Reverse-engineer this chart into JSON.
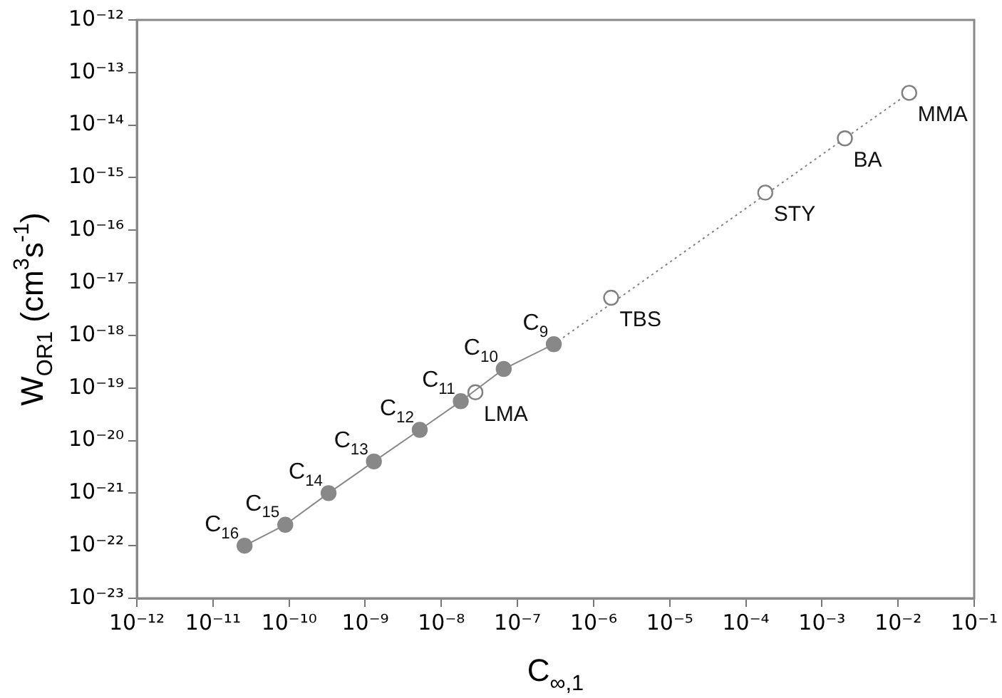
{
  "chart_data": {
    "type": "scatter",
    "xlabel": "C$_{∞,1}$",
    "ylabel": "W$_{OR1}$ (cm$^{3}$s$^{-1}$)",
    "log": "xy",
    "grid": false,
    "legend": false,
    "xlim": [
      1e-12,
      0.1
    ],
    "ylim": [
      1e-23,
      1e-12
    ],
    "xticks": [
      {
        "value": 1e-12,
        "label": "10⁻¹²"
      },
      {
        "value": 1e-11,
        "label": "10⁻¹¹"
      },
      {
        "value": 1e-10,
        "label": "10⁻¹⁰"
      },
      {
        "value": 1e-09,
        "label": "10⁻⁹"
      },
      {
        "value": 1e-08,
        "label": "10⁻⁸"
      },
      {
        "value": 1e-07,
        "label": "10⁻⁷"
      },
      {
        "value": 1e-06,
        "label": "10⁻⁶"
      },
      {
        "value": 1e-05,
        "label": "10⁻⁵"
      },
      {
        "value": 0.0001,
        "label": "10⁻⁴"
      },
      {
        "value": 0.001,
        "label": "10⁻³"
      },
      {
        "value": 0.01,
        "label": "10⁻²"
      },
      {
        "value": 0.1,
        "label": "10⁻¹"
      }
    ],
    "yticks": [
      {
        "value": 1e-23,
        "label": "10⁻²³"
      },
      {
        "value": 1e-22,
        "label": "10⁻²²"
      },
      {
        "value": 1e-21,
        "label": "10⁻²¹"
      },
      {
        "value": 1e-20,
        "label": "10⁻²⁰"
      },
      {
        "value": 1e-19,
        "label": "10⁻¹⁹"
      },
      {
        "value": 1e-18,
        "label": "10⁻¹⁸"
      },
      {
        "value": 1e-17,
        "label": "10⁻¹⁷"
      },
      {
        "value": 1e-16,
        "label": "10⁻¹⁶"
      },
      {
        "value": 1e-15,
        "label": "10⁻¹⁵"
      },
      {
        "value": 1e-14,
        "label": "10⁻¹⁴"
      },
      {
        "value": 1e-13,
        "label": "10⁻¹³"
      },
      {
        "value": 1e-12,
        "label": "10⁻¹²"
      }
    ],
    "series": [
      {
        "type": "line",
        "line_style": "solid",
        "marker": "circle",
        "color": "#888888",
        "x": [
          2.6e-11,
          8.9e-11,
          3.3e-10,
          1.3e-09,
          5.2e-09,
          1.8e-08,
          6.6e-08,
          3e-07
        ],
        "values": [
          1e-22,
          2.5e-22,
          1e-21,
          4e-21,
          1.6e-20,
          5.6e-20,
          2.3e-19,
          6.8e-19
        ]
      },
      {
        "type": "scatter",
        "marker": "circle",
        "color": "#808080",
        "x": [
          2.8e-08,
          1.7e-06,
          0.00018,
          0.002,
          0.014
        ],
        "values": [
          8.3e-20,
          5.2e-18,
          5.2e-16,
          5.6e-15,
          4.1e-14
        ]
      },
      {
        "type": "line",
        "line_style": "dotted",
        "marker": "none",
        "color": "#808080",
        "x": [
          3e-07,
          0.014
        ],
        "values": [
          6.8e-19,
          4.1e-14
        ]
      }
    ],
    "annotations": [
      {
        "text": "C$_{16}$",
        "x": 2.6e-11,
        "y": 1e-22
      },
      {
        "text": "C$_{15}$",
        "x": 8.9e-11,
        "y": 2.5e-22
      },
      {
        "text": "C$_{14}$",
        "x": 3.3e-10,
        "y": 1e-21
      },
      {
        "text": "C$_{13}$",
        "x": 1.3e-09,
        "y": 4e-21
      },
      {
        "text": "C$_{12}$",
        "x": 5.2e-09,
        "y": 1.6e-20
      },
      {
        "text": "C$_{11}$",
        "x": 1.8e-08,
        "y": 5.6e-20
      },
      {
        "text": "C$_{10}$",
        "x": 6.6e-08,
        "y": 2.3e-19
      },
      {
        "text": "C$_{9}$",
        "x": 3e-07,
        "y": 6.8e-19
      },
      {
        "text": "LMA",
        "x": 2.8e-08,
        "y": 8.3e-20
      },
      {
        "text": "TBS",
        "x": 1.7e-06,
        "y": 5.2e-18
      },
      {
        "text": "STY",
        "x": 0.00018,
        "y": 5.2e-16
      },
      {
        "text": "BA",
        "x": 0.002,
        "y": 5.6e-15
      },
      {
        "text": "MMA",
        "x": 0.014,
        "y": 4.1e-14
      }
    ]
  }
}
